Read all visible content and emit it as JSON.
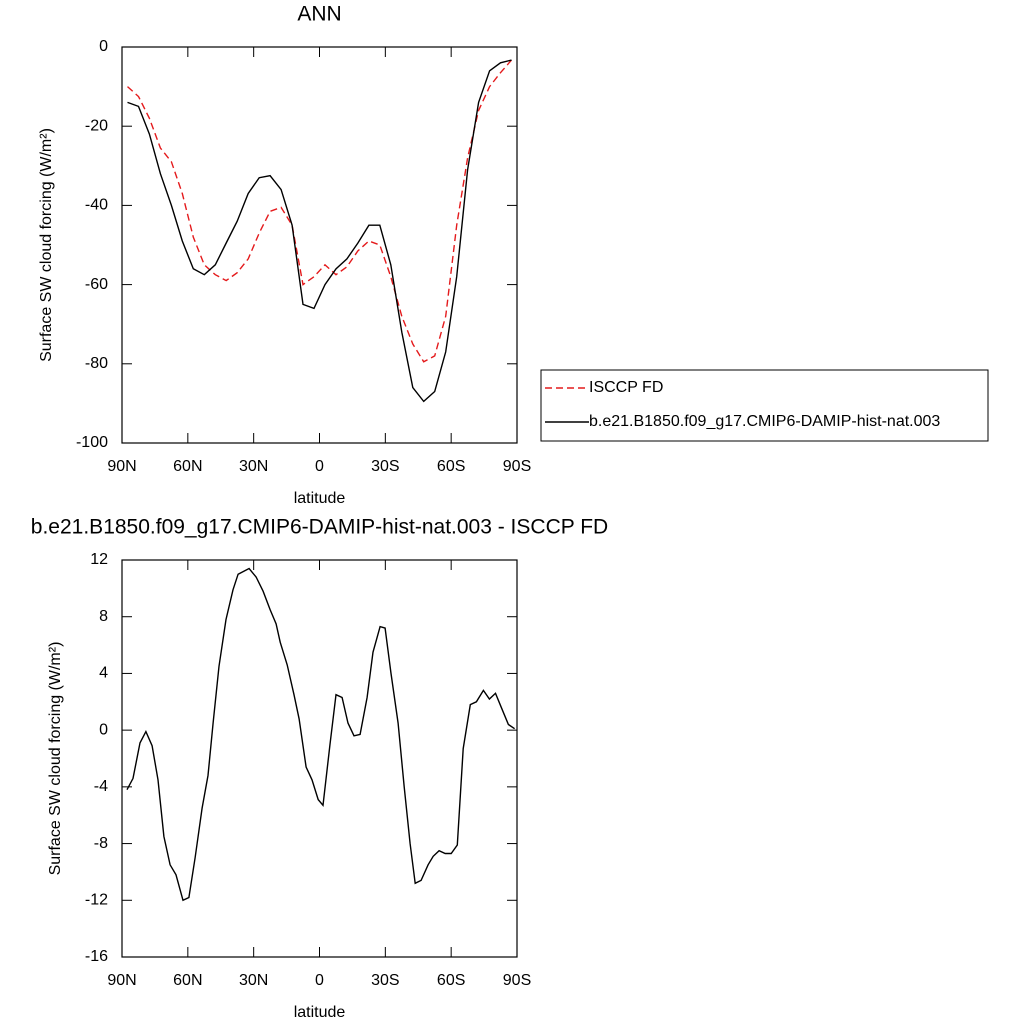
{
  "chart_data": [
    {
      "type": "line",
      "title": "ANN",
      "xlabel": "latitude",
      "ylabel": "Surface SW cloud forcing (W/m²)",
      "x": [
        87.5,
        82.5,
        77.5,
        72.5,
        67.5,
        62.5,
        57.5,
        52.5,
        47.5,
        42.5,
        37.5,
        32.5,
        27.5,
        22.5,
        17.5,
        12.5,
        7.5,
        2.5,
        -2.5,
        -7.5,
        -12.5,
        -17.5,
        -22.5,
        -27.5,
        -32.5,
        -37.5,
        -42.5,
        -47.5,
        -52.5,
        -57.5,
        -62.5,
        -67.5,
        -72.5,
        -77.5,
        -82.5,
        -87.5
      ],
      "series": [
        {
          "name": "ISCCP FD",
          "color": "#e41a1c",
          "dashed": true,
          "values": [
            -10,
            -12.5,
            -18,
            -25.5,
            -29,
            -37,
            -48,
            -55,
            -57.5,
            -59,
            -57,
            -53.5,
            -47,
            -41.5,
            -40.5,
            -45,
            -60,
            -58,
            -55,
            -57.5,
            -55.5,
            -51.5,
            -49,
            -50,
            -58,
            -68,
            -75,
            -79.5,
            -78,
            -68,
            -45,
            -28,
            -16,
            -10,
            -6.5,
            -3.3
          ]
        },
        {
          "name": "b.e21.B1850.f09_g17.CMIP6-DAMIP-hist-nat.003",
          "color": "#000000",
          "dashed": false,
          "values": [
            -14,
            -15,
            -22,
            -32,
            -40,
            -49,
            -56,
            -57.5,
            -55,
            -49.5,
            -44,
            -37,
            -33,
            -32.5,
            -36,
            -45,
            -65,
            -66,
            -60,
            -56,
            -53.5,
            -49.5,
            -45,
            -45,
            -55,
            -72,
            -86,
            -89.5,
            -87,
            -77,
            -58,
            -31,
            -14,
            -6,
            -4,
            -3.3
          ]
        }
      ],
      "xlim": [
        90,
        -90
      ],
      "xticks": [
        {
          "value": 90,
          "label": "90N"
        },
        {
          "value": 60,
          "label": "60N"
        },
        {
          "value": 30,
          "label": "30N"
        },
        0,
        {
          "value": -30,
          "label": "30S"
        },
        {
          "value": -60,
          "label": "60S"
        },
        {
          "value": -90,
          "label": "90S"
        }
      ],
      "ylim": [
        -100,
        0
      ],
      "yticks": [
        -100,
        -80,
        -60,
        -40,
        -20,
        0
      ],
      "legend": "outside right"
    },
    {
      "type": "line",
      "title": "b.e21.B1850.f09_g17.CMIP6-DAMIP-hist-nat.003 - ISCCP FD",
      "xlabel": "latitude",
      "ylabel": "Surface SW cloud forcing (W/m²)",
      "x": [
        87.7,
        85.0,
        81.8,
        79.1,
        76.3,
        73.6,
        70.9,
        68.1,
        65.4,
        62.2,
        59.5,
        56.7,
        53.5,
        50.8,
        48.5,
        45.8,
        42.6,
        39.4,
        37.1,
        32.1,
        28.9,
        25.7,
        22.5,
        19.8,
        17.9,
        14.7,
        11.6,
        9.3,
        6.1,
        3.4,
        0.6,
        -1.6,
        -4.8,
        -7.5,
        -10.3,
        -13.0,
        -15.7,
        -18.5,
        -21.7,
        -24.4,
        -27.6,
        -29.9,
        -32.6,
        -35.8,
        -38.6,
        -41.3,
        -43.6,
        -46.3,
        -49.5,
        -51.8,
        -54.5,
        -57.3,
        -60.0,
        -62.8,
        -65.5,
        -68.7,
        -71.5,
        -74.7,
        -77.4,
        -80.2,
        -83.4,
        -86.1,
        -88.9
      ],
      "series": [
        {
          "color": "#000000",
          "dashed": false,
          "values": [
            -4.2,
            -3.4,
            -0.9,
            -0.1,
            -1.1,
            -3.5,
            -7.5,
            -9.5,
            -10.2,
            -12.0,
            -11.8,
            -9,
            -5.5,
            -3.2,
            0.5,
            4.5,
            7.8,
            9.9,
            11.0,
            11.4,
            10.8,
            9.8,
            8.5,
            7.5,
            6.2,
            4.6,
            2.5,
            0.8,
            -2.6,
            -3.5,
            -4.9,
            -5.3,
            -1.0,
            2.5,
            2.3,
            0.5,
            -0.4,
            -0.3,
            2.3,
            5.5,
            7.3,
            7.2,
            4,
            0.5,
            -4,
            -8,
            -10.8,
            -10.6,
            -9.5,
            -8.9,
            -8.5,
            -8.7,
            -8.7,
            -8.1,
            -1.3,
            1.8,
            2.0,
            2.8,
            2.2,
            2.6,
            1.4,
            0.4,
            0.1
          ]
        }
      ],
      "xlim": [
        90,
        -90
      ],
      "xticks": [
        {
          "value": 90,
          "label": "90N"
        },
        {
          "value": 60,
          "label": "60N"
        },
        {
          "value": 30,
          "label": "30N"
        },
        0,
        {
          "value": -30,
          "label": "30S"
        },
        {
          "value": -60,
          "label": "60S"
        },
        {
          "value": -90,
          "label": "90S"
        }
      ],
      "ylim": [
        -16,
        12
      ],
      "yticks": [
        -16,
        -12,
        -8,
        -4,
        0,
        4,
        8,
        12
      ]
    }
  ]
}
